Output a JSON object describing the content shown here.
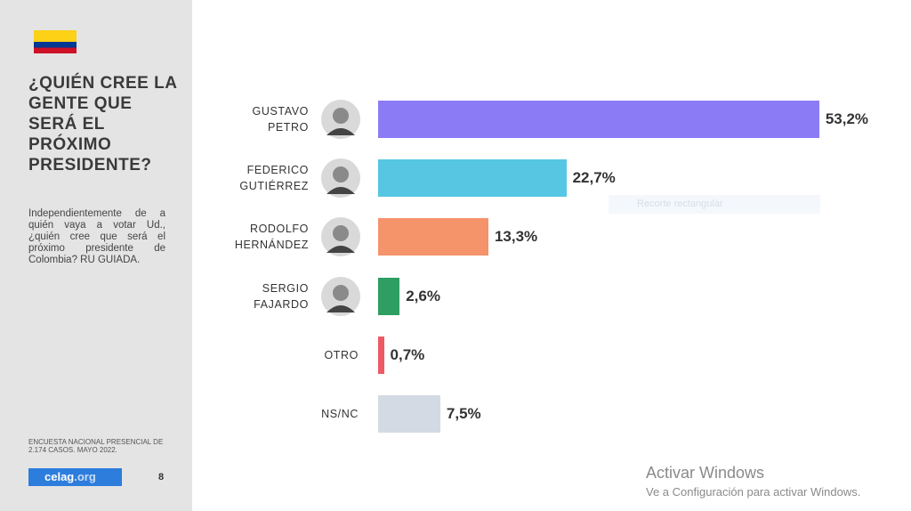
{
  "sidebar": {
    "title": "¿QUIÉN CREE LA\nGENTE QUE\nSERÁ EL\nPRÓXIMO\nPRESIDENTE?",
    "description": "Independientemente de a quién vaya a votar Ud., ¿quién cree que será el próximo presidente de Colombia? RU GUIADA.",
    "source": "ENCUESTA NACIONAL PRESENCIAL DE 2.174 CASOS. MAYO 2022.",
    "logo_main": "celag",
    "logo_suffix": ".org",
    "page": "8"
  },
  "chart_data": {
    "type": "bar",
    "orientation": "horizontal",
    "categories": [
      "GUSTAVO\nPETRO",
      "FEDERICO\nGUTIÉRREZ",
      "RODOLFO\nHERNÁNDEZ",
      "SERGIO\nFAJARDO",
      "OTRO",
      "NS/NC"
    ],
    "values": [
      53.2,
      22.7,
      13.3,
      2.6,
      0.7,
      7.5
    ],
    "value_labels": [
      "53,2%",
      "22,7%",
      "13,3%",
      "2,6%",
      "0,7%",
      "7,5%"
    ],
    "colors": [
      "#8b7cf6",
      "#56c6e2",
      "#f5936b",
      "#2e9e63",
      "#ee5a64",
      "#d3dae3"
    ]
  },
  "overlay": {
    "snip_tooltip": "Recorte rectangular",
    "watermark_title": "Activar Windows",
    "watermark_text": "Ve a Configuración para activar Windows."
  }
}
